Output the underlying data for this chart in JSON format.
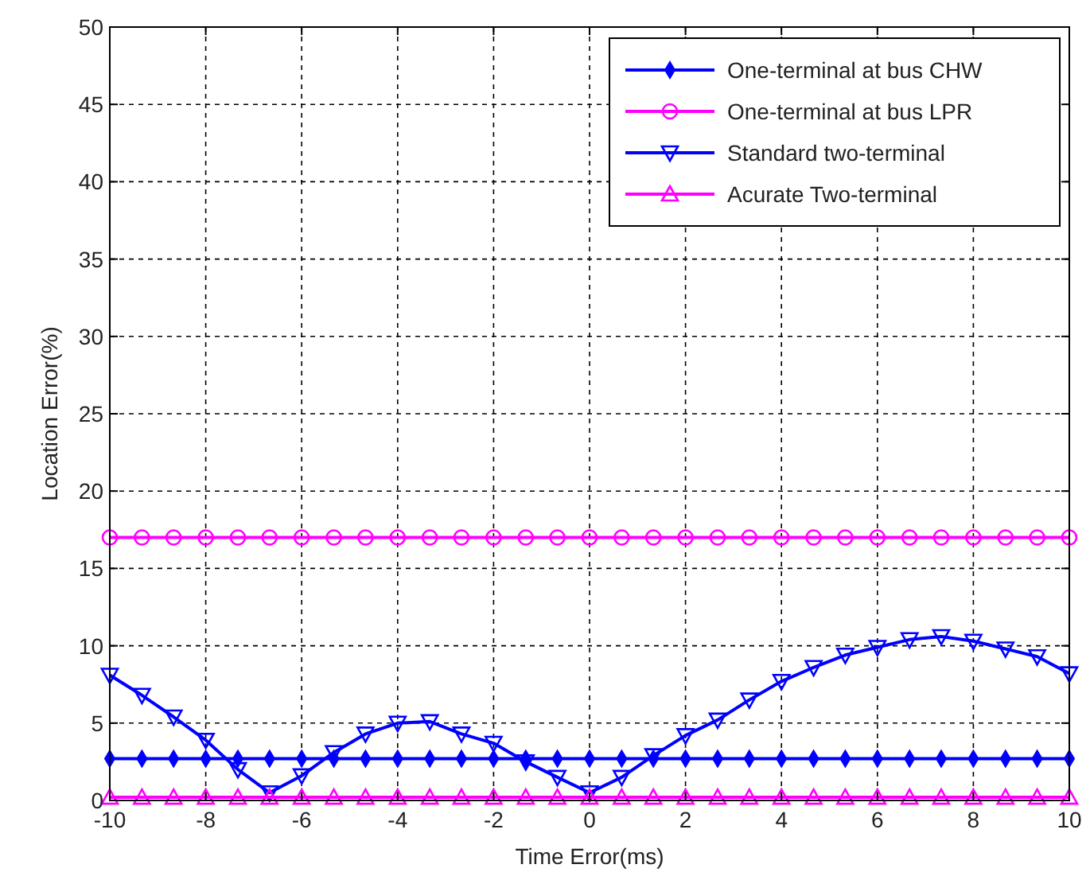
{
  "chart_data": {
    "type": "line",
    "xlabel": "Time Error(ms)",
    "ylabel": "Location Error(%)",
    "x": [
      -10,
      -9.33,
      -8.67,
      -8,
      -7.33,
      -6.67,
      -6,
      -5.33,
      -4.67,
      -4,
      -3.33,
      -2.67,
      -2,
      -1.33,
      -0.67,
      0,
      0.67,
      1.33,
      2,
      2.67,
      3.33,
      4,
      4.67,
      5.33,
      6,
      6.67,
      7.33,
      8,
      8.67,
      9.33,
      10
    ],
    "xlim": [
      -10,
      10
    ],
    "xticks": [
      -10,
      -8,
      -6,
      -4,
      -2,
      0,
      2,
      4,
      6,
      8,
      10
    ],
    "ylim": [
      0,
      50
    ],
    "yticks": [
      0,
      5,
      10,
      15,
      20,
      25,
      30,
      35,
      40,
      45,
      50
    ],
    "grid": true,
    "legend": "top right",
    "series": [
      {
        "name": "One-terminal at bus CHW",
        "color": "#0000ff",
        "marker": "diamond",
        "values": [
          2.7,
          2.7,
          2.7,
          2.7,
          2.7,
          2.7,
          2.7,
          2.7,
          2.7,
          2.7,
          2.7,
          2.7,
          2.7,
          2.7,
          2.7,
          2.7,
          2.7,
          2.7,
          2.7,
          2.7,
          2.7,
          2.7,
          2.7,
          2.7,
          2.7,
          2.7,
          2.7,
          2.7,
          2.7,
          2.7,
          2.7
        ]
      },
      {
        "name": "One-terminal at bus LPR",
        "color": "#ff00ff",
        "marker": "circle",
        "values": [
          17,
          17,
          17,
          17,
          17,
          17,
          17,
          17,
          17,
          17,
          17,
          17,
          17,
          17,
          17,
          17,
          17,
          17,
          17,
          17,
          17,
          17,
          17,
          17,
          17,
          17,
          17,
          17,
          17,
          17,
          17
        ]
      },
      {
        "name": "Standard two-terminal",
        "color": "#0000ff",
        "marker": "triangle-down",
        "values": [
          8.1,
          6.8,
          5.4,
          3.9,
          2.0,
          0.5,
          1.6,
          3.1,
          4.3,
          5.0,
          5.1,
          4.3,
          3.7,
          2.5,
          1.5,
          0.5,
          1.5,
          2.9,
          4.2,
          5.2,
          6.5,
          7.7,
          8.6,
          9.4,
          9.9,
          10.4,
          10.6,
          10.3,
          9.8,
          9.3,
          8.2
        ]
      },
      {
        "name": "Acurate Two-terminal",
        "color": "#ff00ff",
        "marker": "triangle",
        "values": [
          0.2,
          0.2,
          0.2,
          0.2,
          0.2,
          0.2,
          0.2,
          0.2,
          0.2,
          0.2,
          0.2,
          0.2,
          0.2,
          0.2,
          0.2,
          0.2,
          0.2,
          0.2,
          0.2,
          0.2,
          0.2,
          0.2,
          0.2,
          0.2,
          0.2,
          0.2,
          0.2,
          0.2,
          0.2,
          0.2,
          0.2
        ]
      }
    ]
  }
}
